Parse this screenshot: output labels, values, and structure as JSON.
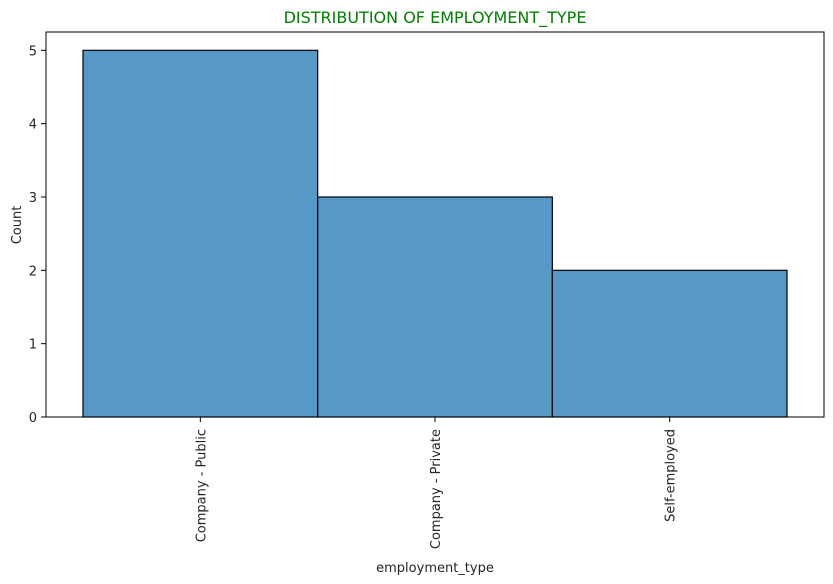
{
  "chart_data": {
    "type": "bar",
    "title": "DISTRIBUTION OF EMPLOYMENT_TYPE",
    "title_color": "#008000",
    "xlabel": "employment_type",
    "ylabel": "Count",
    "categories": [
      "Company - Public",
      "Company - Private",
      "Self-employed"
    ],
    "values": [
      5,
      3,
      2
    ],
    "ylim": [
      0,
      5.25
    ],
    "yticks": [
      "0",
      "1",
      "2",
      "3",
      "4",
      "5"
    ],
    "grid": false,
    "bar_color": "#5799C6",
    "edge_color": "#000000"
  }
}
